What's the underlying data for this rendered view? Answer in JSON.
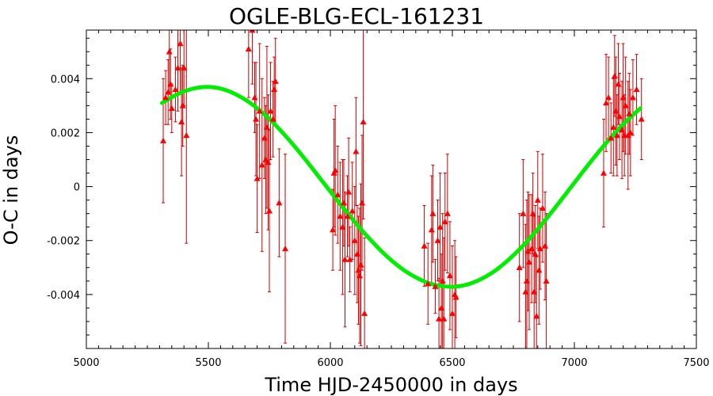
{
  "chart_data": {
    "type": "scatter",
    "title": "OGLE-BLG-ECL-161231",
    "xlabel": "Time HJD-2450000 in days",
    "ylabel": "O-C in days",
    "xlim": [
      5000,
      7500
    ],
    "ylim": [
      -0.006,
      0.0058
    ],
    "x_ticks": [
      5000,
      5500,
      6000,
      6500,
      7000,
      7500
    ],
    "x_tick_labels": [
      "5000",
      "5500",
      "6000",
      "6500",
      "7000",
      "7500"
    ],
    "y_ticks": [
      -0.004,
      -0.002,
      0,
      0.002,
      0.004
    ],
    "y_tick_labels": [
      "-0.004",
      "-0.002",
      "0",
      "0.002",
      "0.004"
    ],
    "grid": false,
    "colors": {
      "points": "#ff0000",
      "errorbars": "#cc0000",
      "model": "#00ee00"
    },
    "series": [
      {
        "kind": "points-with-errorbars",
        "marker": "triangle",
        "points": [
          [
            5315,
            0.0017,
            0.0023
          ],
          [
            5325,
            0.0033,
            0.001
          ],
          [
            5335,
            0.0035,
            0.0012
          ],
          [
            5340,
            0.005,
            0.0015
          ],
          [
            5345,
            0.0038,
            0.0013
          ],
          [
            5350,
            0.0029,
            0.0009
          ],
          [
            5365,
            0.0036,
            0.0012
          ],
          [
            5375,
            0.0044,
            0.0016
          ],
          [
            5385,
            0.0053,
            0.0018
          ],
          [
            5390,
            0.0024,
            0.002
          ],
          [
            5395,
            0.003,
            0.0015
          ],
          [
            5400,
            0.0044,
            0.0014
          ],
          [
            5410,
            0.0019,
            0.004
          ],
          [
            5665,
            0.0051,
            0.0018
          ],
          [
            5680,
            0.0058,
            0.002
          ],
          [
            5690,
            0.0033,
            0.0013
          ],
          [
            5695,
            0.0025,
            0.0021
          ],
          [
            5700,
            0.0003,
            0.002
          ],
          [
            5710,
            0.0028,
            0.0025
          ],
          [
            5720,
            0.0008,
            0.0032
          ],
          [
            5730,
            0.0018,
            0.0015
          ],
          [
            5735,
            0.001,
            0.002
          ],
          [
            5740,
            0.0022,
            0.003
          ],
          [
            5745,
            0.0009,
            0.0025
          ],
          [
            5750,
            -0.0009,
            0.003
          ],
          [
            5755,
            0.0028,
            0.0018
          ],
          [
            5765,
            0.0025,
            0.0014
          ],
          [
            5770,
            0.0036,
            0.0012
          ],
          [
            5775,
            0.0039,
            0.0016
          ],
          [
            5790,
            -0.0006,
            0.002
          ],
          [
            5815,
            -0.0023,
            0.0035
          ],
          [
            6010,
            -0.0016,
            0.0015
          ],
          [
            6015,
            0.0005,
            0.002
          ],
          [
            6020,
            0.0006,
            0.0024
          ],
          [
            6030,
            -0.0003,
            0.0018
          ],
          [
            6040,
            -0.0011,
            0.002
          ],
          [
            6050,
            -0.0015,
            0.0025
          ],
          [
            6055,
            -0.0006,
            0.0016
          ],
          [
            6060,
            -0.0027,
            0.0025
          ],
          [
            6070,
            -0.0011,
            0.0015
          ],
          [
            6075,
            -0.0002,
            0.002
          ],
          [
            6080,
            -0.0027,
            0.0012
          ],
          [
            6090,
            -0.0009,
            0.0018
          ],
          [
            6100,
            -0.002,
            0.002
          ],
          [
            6105,
            0.0013,
            0.002
          ],
          [
            6110,
            -0.0025,
            0.0018
          ],
          [
            6115,
            -0.0031,
            0.002
          ],
          [
            6120,
            -0.0033,
            0.0025
          ],
          [
            6125,
            -0.0029,
            0.003
          ],
          [
            6130,
            -0.0006,
            0.0025
          ],
          [
            6135,
            0.0024,
            0.0036
          ],
          [
            6140,
            -0.0047,
            0.0028
          ],
          [
            6385,
            -0.0022,
            0.0015
          ],
          [
            6400,
            -0.0036,
            0.0015
          ],
          [
            6415,
            -0.0016,
            0.002
          ],
          [
            6420,
            -0.001,
            0.0018
          ],
          [
            6430,
            -0.0037,
            0.001
          ],
          [
            6440,
            -0.002,
            0.0015
          ],
          [
            6445,
            -0.0049,
            0.0015
          ],
          [
            6450,
            -0.0015,
            0.002
          ],
          [
            6455,
            -0.0045,
            0.002
          ],
          [
            6460,
            -0.0035,
            0.0025
          ],
          [
            6465,
            -0.0049,
            0.003
          ],
          [
            6470,
            -0.0013,
            0.0018
          ],
          [
            6480,
            -0.001,
            0.0022
          ],
          [
            6490,
            -0.0033,
            0.002
          ],
          [
            6500,
            -0.0047,
            0.0025
          ],
          [
            6510,
            -0.004,
            0.002
          ],
          [
            6515,
            -0.0041,
            0.0015
          ],
          [
            6775,
            -0.003,
            0.002
          ],
          [
            6790,
            -0.001,
            0.002
          ],
          [
            6800,
            -0.0039,
            0.0025
          ],
          [
            6805,
            -0.0035,
            0.003
          ],
          [
            6810,
            -0.0024,
            0.0022
          ],
          [
            6815,
            -0.0028,
            0.0025
          ],
          [
            6825,
            -0.0023,
            0.002
          ],
          [
            6830,
            -0.001,
            0.0015
          ],
          [
            6835,
            -0.0039,
            0.0028
          ],
          [
            6840,
            -0.0025,
            0.0018
          ],
          [
            6845,
            -0.0048,
            0.0022
          ],
          [
            6850,
            -0.0005,
            0.0018
          ],
          [
            6855,
            -0.0031,
            0.002
          ],
          [
            6860,
            -0.0023,
            0.0015
          ],
          [
            6870,
            -0.0008,
            0.002
          ],
          [
            6880,
            -0.0022,
            0.002
          ],
          [
            6885,
            -0.0035,
            0.0025
          ],
          [
            7120,
            0.0005,
            0.002
          ],
          [
            7130,
            0.0031,
            0.0018
          ],
          [
            7140,
            0.0033,
            0.0015
          ],
          [
            7150,
            0.0018,
            0.0013
          ],
          [
            7160,
            0.0022,
            0.0018
          ],
          [
            7165,
            0.0041,
            0.0015
          ],
          [
            7170,
            0.0028,
            0.002
          ],
          [
            7175,
            0.0019,
            0.0015
          ],
          [
            7180,
            0.0038,
            0.0015
          ],
          [
            7185,
            0.0026,
            0.0016
          ],
          [
            7195,
            0.0021,
            0.0018
          ],
          [
            7200,
            0.0033,
            0.002
          ],
          [
            7205,
            0.0019,
            0.0015
          ],
          [
            7210,
            0.003,
            0.0018
          ],
          [
            7220,
            0.0019,
            0.002
          ],
          [
            7225,
            0.0027,
            0.0015
          ],
          [
            7230,
            0.002,
            0.0016
          ],
          [
            7240,
            0.0033,
            0.0014
          ],
          [
            7255,
            0.0036,
            0.0013
          ],
          [
            7275,
            0.0025,
            0.0015
          ]
        ]
      },
      {
        "kind": "model-curve",
        "x": [
          5310,
          5360,
          5410,
          5460,
          5510,
          5560,
          5610,
          5660,
          5710,
          5760,
          5810,
          5860,
          5910,
          5960,
          6010,
          6060,
          6110,
          6160,
          6210,
          6260,
          6310,
          6360,
          6410,
          6460,
          6510,
          6560,
          6610,
          6660,
          6710,
          6760,
          6810,
          6860,
          6910,
          6960,
          7010,
          7060,
          7110,
          7160,
          7210,
          7270
        ],
        "y": [
          0.0031,
          0.00336,
          0.00356,
          0.00367,
          0.00369,
          0.00361,
          0.00343,
          0.00317,
          0.00283,
          0.00242,
          0.00194,
          0.00142,
          0.00086,
          0.00028,
          -0.0003,
          -0.00087,
          -0.00142,
          -0.00193,
          -0.0024,
          -0.00281,
          -0.00315,
          -0.00341,
          -0.0036,
          -0.00369,
          -0.00371,
          -0.00363,
          -0.00346,
          -0.00321,
          -0.00287,
          -0.00246,
          -0.00199,
          -0.00147,
          -0.00091,
          -0.00033,
          0.00026,
          0.00084,
          0.0014,
          0.00192,
          0.0024,
          0.0029
        ]
      }
    ]
  }
}
